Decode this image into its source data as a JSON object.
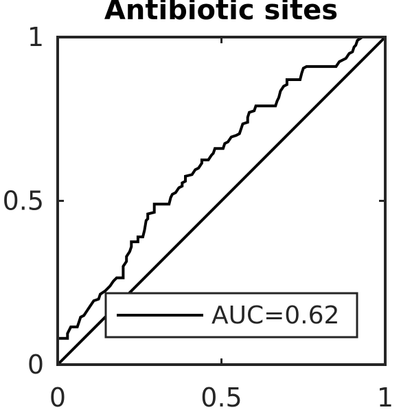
{
  "chart_data": {
    "type": "line",
    "title": "Antibiotic sites",
    "xlabel": "",
    "ylabel": "",
    "xlim": [
      0,
      1
    ],
    "ylim": [
      0,
      1
    ],
    "x_ticks": [
      {
        "value": 0,
        "label": "0"
      },
      {
        "value": 0.5,
        "label": "0.5"
      },
      {
        "value": 1,
        "label": "1"
      }
    ],
    "y_ticks": [
      {
        "value": 0,
        "label": "0"
      },
      {
        "value": 0.5,
        "label": "0.5"
      },
      {
        "value": 1,
        "label": "1"
      }
    ],
    "grid": false,
    "legend": {
      "placement": "bottom-right"
    },
    "colors": {
      "line": "#000000",
      "axes": "#262626"
    },
    "series": [
      {
        "name": "AUC=0.62",
        "points": [
          [
            0,
            0
          ],
          [
            0,
            0.08
          ],
          [
            0.03,
            0.08
          ],
          [
            0.03,
            0.095
          ],
          [
            0.04,
            0.115
          ],
          [
            0.06,
            0.115
          ],
          [
            0.065,
            0.13
          ],
          [
            0.07,
            0.145
          ],
          [
            0.08,
            0.15
          ],
          [
            0.09,
            0.165
          ],
          [
            0.1,
            0.18
          ],
          [
            0.11,
            0.195
          ],
          [
            0.125,
            0.2
          ],
          [
            0.13,
            0.215
          ],
          [
            0.145,
            0.225
          ],
          [
            0.16,
            0.24
          ],
          [
            0.17,
            0.255
          ],
          [
            0.18,
            0.265
          ],
          [
            0.2,
            0.265
          ],
          [
            0.2,
            0.3
          ],
          [
            0.21,
            0.315
          ],
          [
            0.21,
            0.33
          ],
          [
            0.22,
            0.345
          ],
          [
            0.225,
            0.36
          ],
          [
            0.225,
            0.375
          ],
          [
            0.245,
            0.375
          ],
          [
            0.245,
            0.39
          ],
          [
            0.26,
            0.39
          ],
          [
            0.265,
            0.41
          ],
          [
            0.27,
            0.44
          ],
          [
            0.275,
            0.445
          ],
          [
            0.275,
            0.46
          ],
          [
            0.295,
            0.465
          ],
          [
            0.295,
            0.49
          ],
          [
            0.34,
            0.49
          ],
          [
            0.345,
            0.51
          ],
          [
            0.35,
            0.52
          ],
          [
            0.36,
            0.525
          ],
          [
            0.37,
            0.54
          ],
          [
            0.38,
            0.545
          ],
          [
            0.38,
            0.555
          ],
          [
            0.39,
            0.56
          ],
          [
            0.39,
            0.575
          ],
          [
            0.41,
            0.58
          ],
          [
            0.42,
            0.595
          ],
          [
            0.43,
            0.6
          ],
          [
            0.44,
            0.615
          ],
          [
            0.44,
            0.625
          ],
          [
            0.46,
            0.625
          ],
          [
            0.47,
            0.64
          ],
          [
            0.475,
            0.645
          ],
          [
            0.48,
            0.66
          ],
          [
            0.505,
            0.66
          ],
          [
            0.51,
            0.675
          ],
          [
            0.52,
            0.68
          ],
          [
            0.53,
            0.695
          ],
          [
            0.545,
            0.7
          ],
          [
            0.555,
            0.705
          ],
          [
            0.56,
            0.72
          ],
          [
            0.565,
            0.735
          ],
          [
            0.58,
            0.74
          ],
          [
            0.58,
            0.755
          ],
          [
            0.585,
            0.77
          ],
          [
            0.6,
            0.775
          ],
          [
            0.605,
            0.79
          ],
          [
            0.665,
            0.79
          ],
          [
            0.67,
            0.805
          ],
          [
            0.675,
            0.815
          ],
          [
            0.68,
            0.835
          ],
          [
            0.69,
            0.85
          ],
          [
            0.7,
            0.855
          ],
          [
            0.7,
            0.87
          ],
          [
            0.74,
            0.87
          ],
          [
            0.745,
            0.89
          ],
          [
            0.75,
            0.905
          ],
          [
            0.76,
            0.91
          ],
          [
            0.85,
            0.91
          ],
          [
            0.86,
            0.925
          ],
          [
            0.88,
            0.935
          ],
          [
            0.89,
            0.95
          ],
          [
            0.9,
            0.955
          ],
          [
            0.905,
            0.97
          ],
          [
            0.91,
            0.975
          ],
          [
            0.915,
            0.99
          ],
          [
            0.93,
            1.0
          ],
          [
            1,
            1
          ]
        ]
      },
      {
        "points": [
          [
            0,
            0
          ],
          [
            1,
            1
          ]
        ]
      }
    ]
  }
}
